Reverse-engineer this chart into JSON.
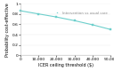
{
  "x": [
    0,
    10000,
    20000,
    30000,
    40000,
    50000
  ],
  "y": [
    0.86,
    0.8,
    0.74,
    0.67,
    0.59,
    0.5
  ],
  "line_color": "#6dcfcc",
  "marker_color": "#6dcfcc",
  "marker": "s",
  "marker_size": 1.8,
  "linewidth": 0.8,
  "xlabel": "ICER ceiling threshold ($)",
  "ylabel": "Probability cost-effective",
  "xlim": [
    0,
    50000
  ],
  "ylim": [
    0.0,
    1.0
  ],
  "yticks": [
    0.0,
    0.2,
    0.4,
    0.6,
    0.8,
    1.0
  ],
  "ytick_labels": [
    "0",
    "0.2",
    "0.4",
    "0.6",
    "0.8",
    "1"
  ],
  "xticks": [
    0,
    10000,
    20000,
    30000,
    40000,
    50000
  ],
  "xtick_labels": [
    "0",
    "10,000",
    "20,000",
    "30,000",
    "40,000",
    "50,000"
  ],
  "legend_label": "Intervention vs usual care",
  "background_color": "#ffffff",
  "spine_color": "#bbbbbb",
  "grid_color": "#e8e8e8",
  "tick_fontsize": 3.2,
  "label_fontsize": 3.5,
  "legend_fontsize": 2.8
}
